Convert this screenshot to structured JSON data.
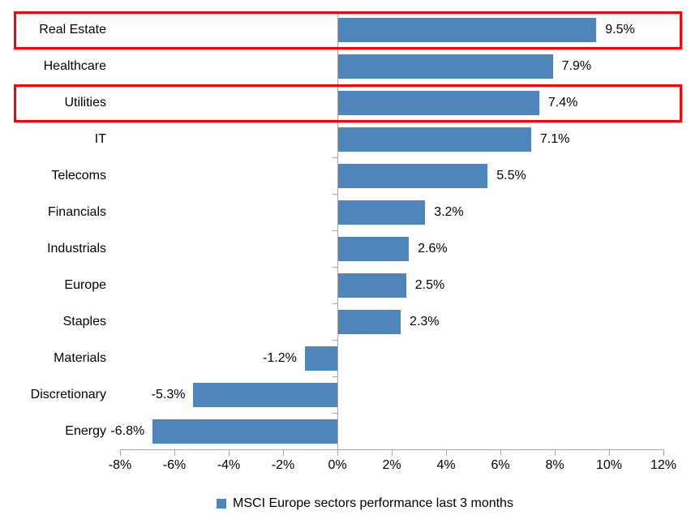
{
  "chart_data": {
    "type": "bar",
    "orientation": "horizontal",
    "title": "",
    "legend": "MSCI Europe sectors performance last 3 months",
    "legend_position": "bottom-center",
    "categories": [
      "Real Estate",
      "Healthcare",
      "Utilities",
      "IT",
      "Telecoms",
      "Financials",
      "Industrials",
      "Europe",
      "Staples",
      "Materials",
      "Discretionary",
      "Energy"
    ],
    "values": [
      9.5,
      7.9,
      7.4,
      7.1,
      5.5,
      3.2,
      2.6,
      2.5,
      2.3,
      -1.2,
      -5.3,
      -6.8
    ],
    "value_labels": [
      "9.5%",
      "7.9%",
      "7.4%",
      "7.1%",
      "5.5%",
      "3.2%",
      "2.6%",
      "2.5%",
      "2.3%",
      "-1.2%",
      "-5.3%",
      "-6.8%"
    ],
    "x_tick_labels": [
      "-8%",
      "-6%",
      "-4%",
      "-2%",
      "0%",
      "2%",
      "4%",
      "6%",
      "8%",
      "10%",
      "12%"
    ],
    "x_tick_values": [
      -8,
      -6,
      -4,
      -2,
      0,
      2,
      4,
      6,
      8,
      10,
      12
    ],
    "xlim": [
      -8,
      12
    ],
    "grid": "off",
    "bar_color": "#4e86bc",
    "axis_color": "#a6a6a6",
    "text_color": "#000000",
    "highlight_color": "#ff0000",
    "highlighted_categories": [
      "Real Estate",
      "Utilities"
    ]
  }
}
